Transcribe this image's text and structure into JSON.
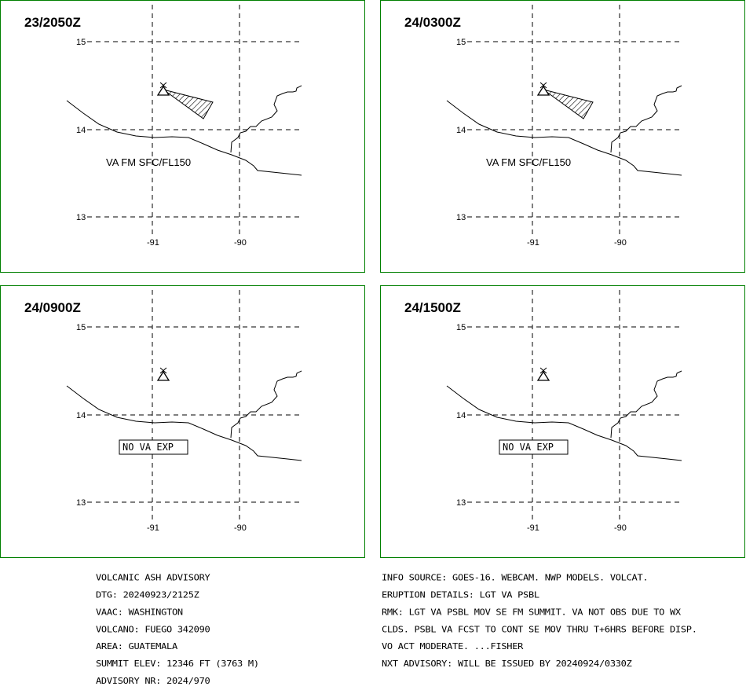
{
  "panels": [
    {
      "id": "p1",
      "time": "23/2050Z",
      "label": "VA FM SFC/FL150",
      "label_type": "text",
      "has_ash": true
    },
    {
      "id": "p2",
      "time": "24/0300Z",
      "label": "VA FM SFC/FL150",
      "label_type": "text",
      "has_ash": true
    },
    {
      "id": "p3",
      "time": "24/0900Z",
      "label": "NO VA EXP",
      "label_type": "box",
      "has_ash": false
    },
    {
      "id": "p4",
      "time": "24/1500Z",
      "label": "NO VA EXP",
      "label_type": "box",
      "has_ash": false
    }
  ],
  "map": {
    "lat_labels": [
      "15",
      "14",
      "13"
    ],
    "lon_labels": [
      "-91",
      "-90"
    ],
    "volcano_icon": "volcano-triangle-icon"
  },
  "advisory_left": [
    "VOLCANIC ASH ADVISORY",
    "DTG: 20240923/2125Z",
    "VAAC: WASHINGTON",
    "VOLCANO: FUEGO 342090",
    "AREA: GUATEMALA",
    "SUMMIT ELEV: 12346 FT (3763 M)",
    "ADVISORY NR: 2024/970"
  ],
  "advisory_right": [
    "INFO SOURCE: GOES-16. WEBCAM. NWP MODELS. VOLCAT.",
    "ERUPTION DETAILS: LGT VA PSBL",
    "RMK: LGT VA PSBL MOV SE FM SUMMIT. VA NOT OBS DUE TO WX",
    "CLDS. PSBL VA FCST TO CONT SE MOV THRU T+6HRS BEFORE DISP.",
    "VO ACT MODERATE. ...FISHER",
    "NXT ADVISORY: WILL BE ISSUED BY 20240924/0330Z"
  ],
  "colors": {
    "panel_border": "#008000",
    "line": "#000000"
  }
}
